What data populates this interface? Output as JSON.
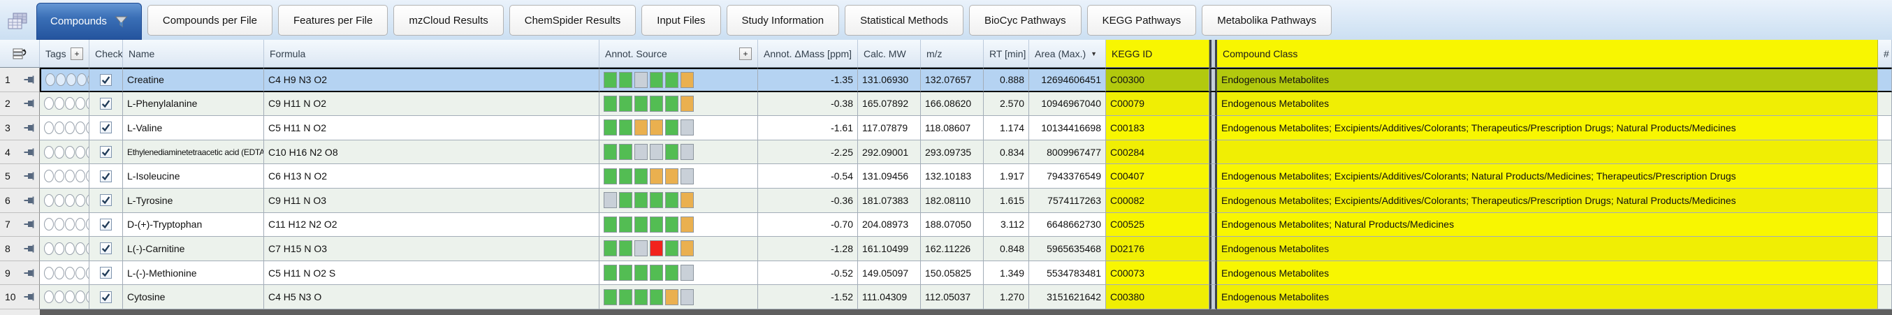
{
  "tabs": {
    "items": [
      {
        "label": "Compounds",
        "active": true
      },
      {
        "label": "Compounds per File",
        "active": false
      },
      {
        "label": "Features per File",
        "active": false
      },
      {
        "label": "mzCloud Results",
        "active": false
      },
      {
        "label": "ChemSpider Results",
        "active": false
      },
      {
        "label": "Input Files",
        "active": false
      },
      {
        "label": "Study Information",
        "active": false
      },
      {
        "label": "Statistical Methods",
        "active": false
      },
      {
        "label": "BioCyc Pathways",
        "active": false
      },
      {
        "label": "KEGG Pathways",
        "active": false
      },
      {
        "label": "Metabolika Pathways",
        "active": false
      }
    ]
  },
  "icons": {
    "tables_icon": "stacked-result-tables",
    "active_tab_filter": "funnel-icon",
    "table_options": "table-options-icon",
    "row_pin": "pin-icon",
    "add_column": "+",
    "area_sort_indicator": "▼",
    "checkbox_check": "✓"
  },
  "colors": {
    "active_tab_blue": "#2f62ab",
    "selected_row_blue": "#b5d3f2",
    "highlight_yellow_cell": "#f8f601",
    "highlight_yellow_header": "#dde203",
    "selected_yellow_cell": "#b2c90e",
    "alt_row_green": "#ecf2ec",
    "square_green": "#53bd53",
    "square_gray": "#c9d0d8",
    "square_orange": "#eab04f",
    "square_red": "#f1231d"
  },
  "table": {
    "tags_slots": 5,
    "headers": {
      "tags": "Tags",
      "checked": "Checked",
      "name": "Name",
      "formula": "Formula",
      "annot_source": "Annot. Source",
      "annot_dmass": "Annot. ΔMass [ppm]",
      "calc_mw": "Calc. MW",
      "mz": "m/z",
      "rt": "RT [min]",
      "area": "Area (Max.)",
      "kegg": "KEGG ID",
      "compound_class": "Compound Class",
      "stub": "#"
    },
    "rows": [
      {
        "num": "1",
        "selected": true,
        "checked": true,
        "name": "Creatine",
        "formula": "C4 H9 N3 O2",
        "annot_source": [
          "g",
          "g",
          "x",
          "g",
          "g",
          "o"
        ],
        "dmass": "-1.35",
        "calc_mw": "131.06930",
        "mz": "132.07657",
        "rt": "0.888",
        "area": "12694606451",
        "kegg": "C00300",
        "compound_class": "Endogenous Metabolites"
      },
      {
        "num": "2",
        "selected": false,
        "checked": true,
        "name": "L-Phenylalanine",
        "formula": "C9 H11 N O2",
        "annot_source": [
          "g",
          "g",
          "g",
          "g",
          "g",
          "o"
        ],
        "dmass": "-0.38",
        "calc_mw": "165.07892",
        "mz": "166.08620",
        "rt": "2.570",
        "area": "10946967040",
        "kegg": "C00079",
        "compound_class": "Endogenous Metabolites"
      },
      {
        "num": "3",
        "selected": false,
        "checked": true,
        "name": "L-Valine",
        "formula": "C5 H11 N O2",
        "annot_source": [
          "g",
          "g",
          "o",
          "o",
          "g",
          "x"
        ],
        "dmass": "-1.61",
        "calc_mw": "117.07879",
        "mz": "118.08607",
        "rt": "1.174",
        "area": "10134416698",
        "kegg": "C00183",
        "compound_class": "Endogenous Metabolites; Excipients/Additives/Colorants; Therapeutics/Prescription Drugs; Natural Products/Medicines"
      },
      {
        "num": "4",
        "selected": false,
        "checked": true,
        "name": "Ethylenediaminetetraacetic acid (EDTA)",
        "formula": "C10 H16 N2 O8",
        "annot_source": [
          "g",
          "g",
          "x",
          "x",
          "g",
          "x"
        ],
        "dmass": "-2.25",
        "calc_mw": "292.09001",
        "mz": "293.09735",
        "rt": "0.834",
        "area": "8009967477",
        "kegg": "C00284",
        "compound_class": ""
      },
      {
        "num": "5",
        "selected": false,
        "checked": true,
        "name": "L-Isoleucine",
        "formula": "C6 H13 N O2",
        "annot_source": [
          "g",
          "g",
          "g",
          "o",
          "o",
          "x"
        ],
        "dmass": "-0.54",
        "calc_mw": "131.09456",
        "mz": "132.10183",
        "rt": "1.917",
        "area": "7943376549",
        "kegg": "C00407",
        "compound_class": "Endogenous Metabolites; Excipients/Additives/Colorants; Natural Products/Medicines; Therapeutics/Prescription Drugs"
      },
      {
        "num": "6",
        "selected": false,
        "checked": true,
        "name": "L-Tyrosine",
        "formula": "C9 H11 N O3",
        "annot_source": [
          "x",
          "g",
          "g",
          "g",
          "g",
          "o"
        ],
        "dmass": "-0.36",
        "calc_mw": "181.07383",
        "mz": "182.08110",
        "rt": "1.615",
        "area": "7574117263",
        "kegg": "C00082",
        "compound_class": "Endogenous Metabolites; Excipients/Additives/Colorants; Therapeutics/Prescription Drugs; Natural Products/Medicines"
      },
      {
        "num": "7",
        "selected": false,
        "checked": true,
        "name": "D-(+)-Tryptophan",
        "formula": "C11 H12 N2 O2",
        "annot_source": [
          "g",
          "g",
          "g",
          "g",
          "g",
          "o"
        ],
        "dmass": "-0.70",
        "calc_mw": "204.08973",
        "mz": "188.07050",
        "rt": "3.112",
        "area": "6648662730",
        "kegg": "C00525",
        "compound_class": "Endogenous Metabolites; Natural Products/Medicines"
      },
      {
        "num": "8",
        "selected": false,
        "checked": true,
        "name": "L(-)-Carnitine",
        "formula": "C7 H15 N O3",
        "annot_source": [
          "g",
          "g",
          "x",
          "r",
          "g",
          "o"
        ],
        "dmass": "-1.28",
        "calc_mw": "161.10499",
        "mz": "162.11226",
        "rt": "0.848",
        "area": "5965635468",
        "kegg": "D02176",
        "compound_class": "Endogenous Metabolites"
      },
      {
        "num": "9",
        "selected": false,
        "checked": true,
        "name": "L-(-)-Methionine",
        "formula": "C5 H11 N O2 S",
        "annot_source": [
          "g",
          "g",
          "g",
          "g",
          "g",
          "x"
        ],
        "dmass": "-0.52",
        "calc_mw": "149.05097",
        "mz": "150.05825",
        "rt": "1.349",
        "area": "5534783481",
        "kegg": "C00073",
        "compound_class": "Endogenous Metabolites"
      },
      {
        "num": "10",
        "selected": false,
        "checked": true,
        "name": "Cytosine",
        "formula": "C4 H5 N3 O",
        "annot_source": [
          "g",
          "g",
          "g",
          "g",
          "o",
          "x"
        ],
        "dmass": "-1.52",
        "calc_mw": "111.04309",
        "mz": "112.05037",
        "rt": "1.270",
        "area": "3151621642",
        "kegg": "C00380",
        "compound_class": "Endogenous Metabolites"
      }
    ]
  }
}
